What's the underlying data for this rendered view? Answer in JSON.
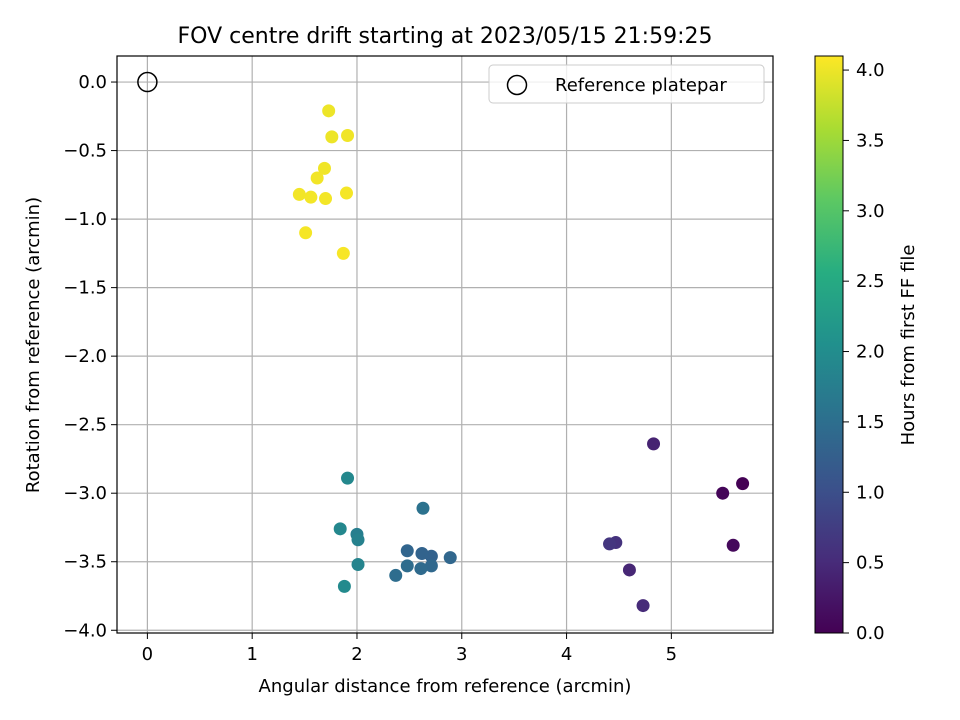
{
  "chart_data": {
    "type": "scatter",
    "title": "FOV centre drift starting at 2023/05/15 21:59:25",
    "xlabel": "Angular distance from reference (arcmin)",
    "ylabel": "Rotation from reference (arcmin)",
    "xlim": [
      -0.29,
      5.97
    ],
    "ylim": [
      -4.02,
      0.19
    ],
    "x_ticks": [
      "0",
      "1",
      "2",
      "3",
      "4",
      "5"
    ],
    "y_ticks": [
      "0.0",
      "−0.5",
      "−1.0",
      "−1.5",
      "−2.0",
      "−2.5",
      "−3.0",
      "−3.5",
      "−4.0"
    ],
    "grid": true,
    "legend": {
      "position": "top-right",
      "entries": [
        "Reference platepar"
      ]
    },
    "reference": {
      "x": 0.0,
      "y": 0.0,
      "label": "Reference platepar"
    },
    "colorbar": {
      "label": "Hours from first FF file",
      "range": [
        0,
        4.1
      ],
      "ticks": [
        "0.0",
        "0.5",
        "1.0",
        "1.5",
        "2.0",
        "2.5",
        "3.0",
        "3.5",
        "4.0"
      ],
      "colormap": "viridis"
    },
    "points": [
      {
        "x": 5.68,
        "y": -2.93,
        "c": 0.0
      },
      {
        "x": 5.49,
        "y": -3.0,
        "c": 0.05
      },
      {
        "x": 5.59,
        "y": -3.38,
        "c": 0.1
      },
      {
        "x": 4.83,
        "y": -2.64,
        "c": 0.4
      },
      {
        "x": 4.6,
        "y": -3.56,
        "c": 0.45
      },
      {
        "x": 4.73,
        "y": -3.82,
        "c": 0.5
      },
      {
        "x": 4.47,
        "y": -3.36,
        "c": 0.6
      },
      {
        "x": 4.41,
        "y": -3.37,
        "c": 0.65
      },
      {
        "x": 2.71,
        "y": -3.46,
        "c": 1.3
      },
      {
        "x": 2.62,
        "y": -3.44,
        "c": 1.32
      },
      {
        "x": 2.48,
        "y": -3.42,
        "c": 1.35
      },
      {
        "x": 2.89,
        "y": -3.47,
        "c": 1.38
      },
      {
        "x": 2.71,
        "y": -3.53,
        "c": 1.4
      },
      {
        "x": 2.61,
        "y": -3.55,
        "c": 1.42
      },
      {
        "x": 2.48,
        "y": -3.53,
        "c": 1.45
      },
      {
        "x": 2.37,
        "y": -3.6,
        "c": 1.48
      },
      {
        "x": 2.63,
        "y": -3.11,
        "c": 1.55
      },
      {
        "x": 2.0,
        "y": -3.3,
        "c": 1.75
      },
      {
        "x": 2.01,
        "y": -3.34,
        "c": 1.8
      },
      {
        "x": 2.01,
        "y": -3.52,
        "c": 1.85
      },
      {
        "x": 1.84,
        "y": -3.26,
        "c": 1.9
      },
      {
        "x": 1.88,
        "y": -3.68,
        "c": 1.95
      },
      {
        "x": 1.91,
        "y": -2.89,
        "c": 1.92
      },
      {
        "x": 1.73,
        "y": -0.21,
        "c": 4.0
      },
      {
        "x": 1.76,
        "y": -0.4,
        "c": 4.0
      },
      {
        "x": 1.91,
        "y": -0.39,
        "c": 4.02
      },
      {
        "x": 1.69,
        "y": -0.63,
        "c": 4.02
      },
      {
        "x": 1.62,
        "y": -0.7,
        "c": 4.03
      },
      {
        "x": 1.45,
        "y": -0.82,
        "c": 4.03
      },
      {
        "x": 1.56,
        "y": -0.84,
        "c": 4.04
      },
      {
        "x": 1.7,
        "y": -0.85,
        "c": 4.04
      },
      {
        "x": 1.9,
        "y": -0.81,
        "c": 4.05
      },
      {
        "x": 1.51,
        "y": -1.1,
        "c": 4.05
      },
      {
        "x": 1.87,
        "y": -1.25,
        "c": 4.06
      }
    ]
  }
}
